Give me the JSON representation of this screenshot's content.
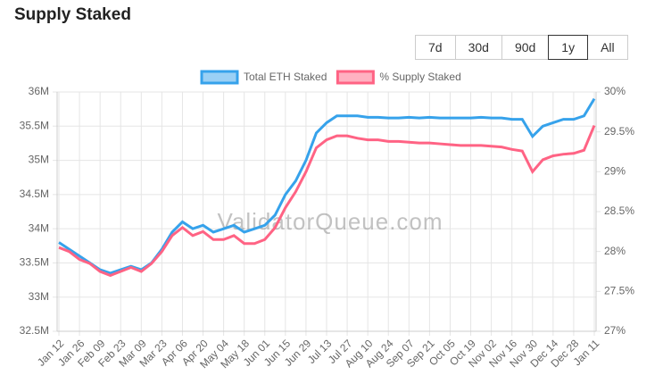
{
  "page_title": "Supply Staked",
  "range_buttons": [
    "7d",
    "30d",
    "90d",
    "1y",
    "All"
  ],
  "selected_button": 3,
  "chart_data": {
    "type": "line",
    "watermark": "ValidatorQueue.com",
    "categories": [
      "Jan 12",
      null,
      "Jan 26",
      null,
      "Feb 09",
      null,
      "Feb 23",
      null,
      "Mar 09",
      null,
      "Mar 23",
      null,
      "Apr 06",
      null,
      "Apr 20",
      null,
      "May 04",
      null,
      "May 18",
      null,
      "Jun 01",
      null,
      "Jun 15",
      null,
      "Jun 29",
      null,
      "Jul 13",
      null,
      "Jul 27",
      null,
      "Aug 10",
      null,
      "Aug 24",
      null,
      "Sep 07",
      null,
      "Sep 21",
      null,
      "Oct 05",
      null,
      "Oct 19",
      null,
      "Nov 02",
      null,
      "Nov 16",
      null,
      "Nov 30",
      null,
      "Dec 14",
      null,
      "Dec 28",
      null,
      "Jan 11"
    ],
    "series": [
      {
        "name": "Total ETH Staked",
        "color": "#36a2eb",
        "fill": "#9ad0f5",
        "axis": "y",
        "values": [
          33.8,
          33.7,
          33.6,
          33.5,
          33.4,
          33.35,
          33.4,
          33.45,
          33.4,
          33.5,
          33.7,
          33.95,
          34.1,
          34.0,
          34.05,
          33.95,
          34.0,
          34.05,
          33.95,
          34.0,
          34.05,
          34.2,
          34.5,
          34.7,
          35.0,
          35.4,
          35.55,
          35.65,
          35.65,
          35.65,
          35.63,
          35.63,
          35.62,
          35.62,
          35.63,
          35.62,
          35.63,
          35.62,
          35.62,
          35.62,
          35.62,
          35.63,
          35.62,
          35.62,
          35.6,
          35.6,
          35.35,
          35.5,
          35.55,
          35.6,
          35.6,
          35.65,
          35.9
        ]
      },
      {
        "name": "% Supply Staked",
        "color": "#ff6384",
        "fill": "#ffb1c1",
        "axis": "y2",
        "values": [
          28.05,
          28.0,
          27.9,
          27.85,
          27.75,
          27.7,
          27.75,
          27.8,
          27.75,
          27.85,
          28.0,
          28.2,
          28.3,
          28.2,
          28.25,
          28.15,
          28.15,
          28.2,
          28.1,
          28.1,
          28.15,
          28.3,
          28.55,
          28.75,
          29.0,
          29.3,
          29.4,
          29.45,
          29.45,
          29.42,
          29.4,
          29.4,
          29.38,
          29.38,
          29.37,
          29.36,
          29.36,
          29.35,
          29.34,
          29.33,
          29.33,
          29.33,
          29.32,
          29.31,
          29.28,
          29.26,
          29.0,
          29.15,
          29.2,
          29.22,
          29.23,
          29.27,
          29.58
        ]
      }
    ],
    "ylim": [
      32.5,
      36
    ],
    "yticks": [
      {
        "value": 32.5,
        "label": "32.5M"
      },
      {
        "value": 33,
        "label": "33M"
      },
      {
        "value": 33.5,
        "label": "33.5M"
      },
      {
        "value": 34,
        "label": "34M"
      },
      {
        "value": 34.5,
        "label": "34.5M"
      },
      {
        "value": 35,
        "label": "35M"
      },
      {
        "value": 35.5,
        "label": "35.5M"
      },
      {
        "value": 36,
        "label": "36M"
      }
    ],
    "y2lim": [
      27,
      30
    ],
    "y2ticks": [
      {
        "value": 27,
        "label": "27%"
      },
      {
        "value": 27.5,
        "label": "27.5%"
      },
      {
        "value": 28,
        "label": "28%"
      },
      {
        "value": 28.5,
        "label": "28.5%"
      },
      {
        "value": 29,
        "label": "29%"
      },
      {
        "value": 29.5,
        "label": "29.5%"
      },
      {
        "value": 30,
        "label": "30%"
      }
    ],
    "grid": true,
    "legend": "top"
  }
}
